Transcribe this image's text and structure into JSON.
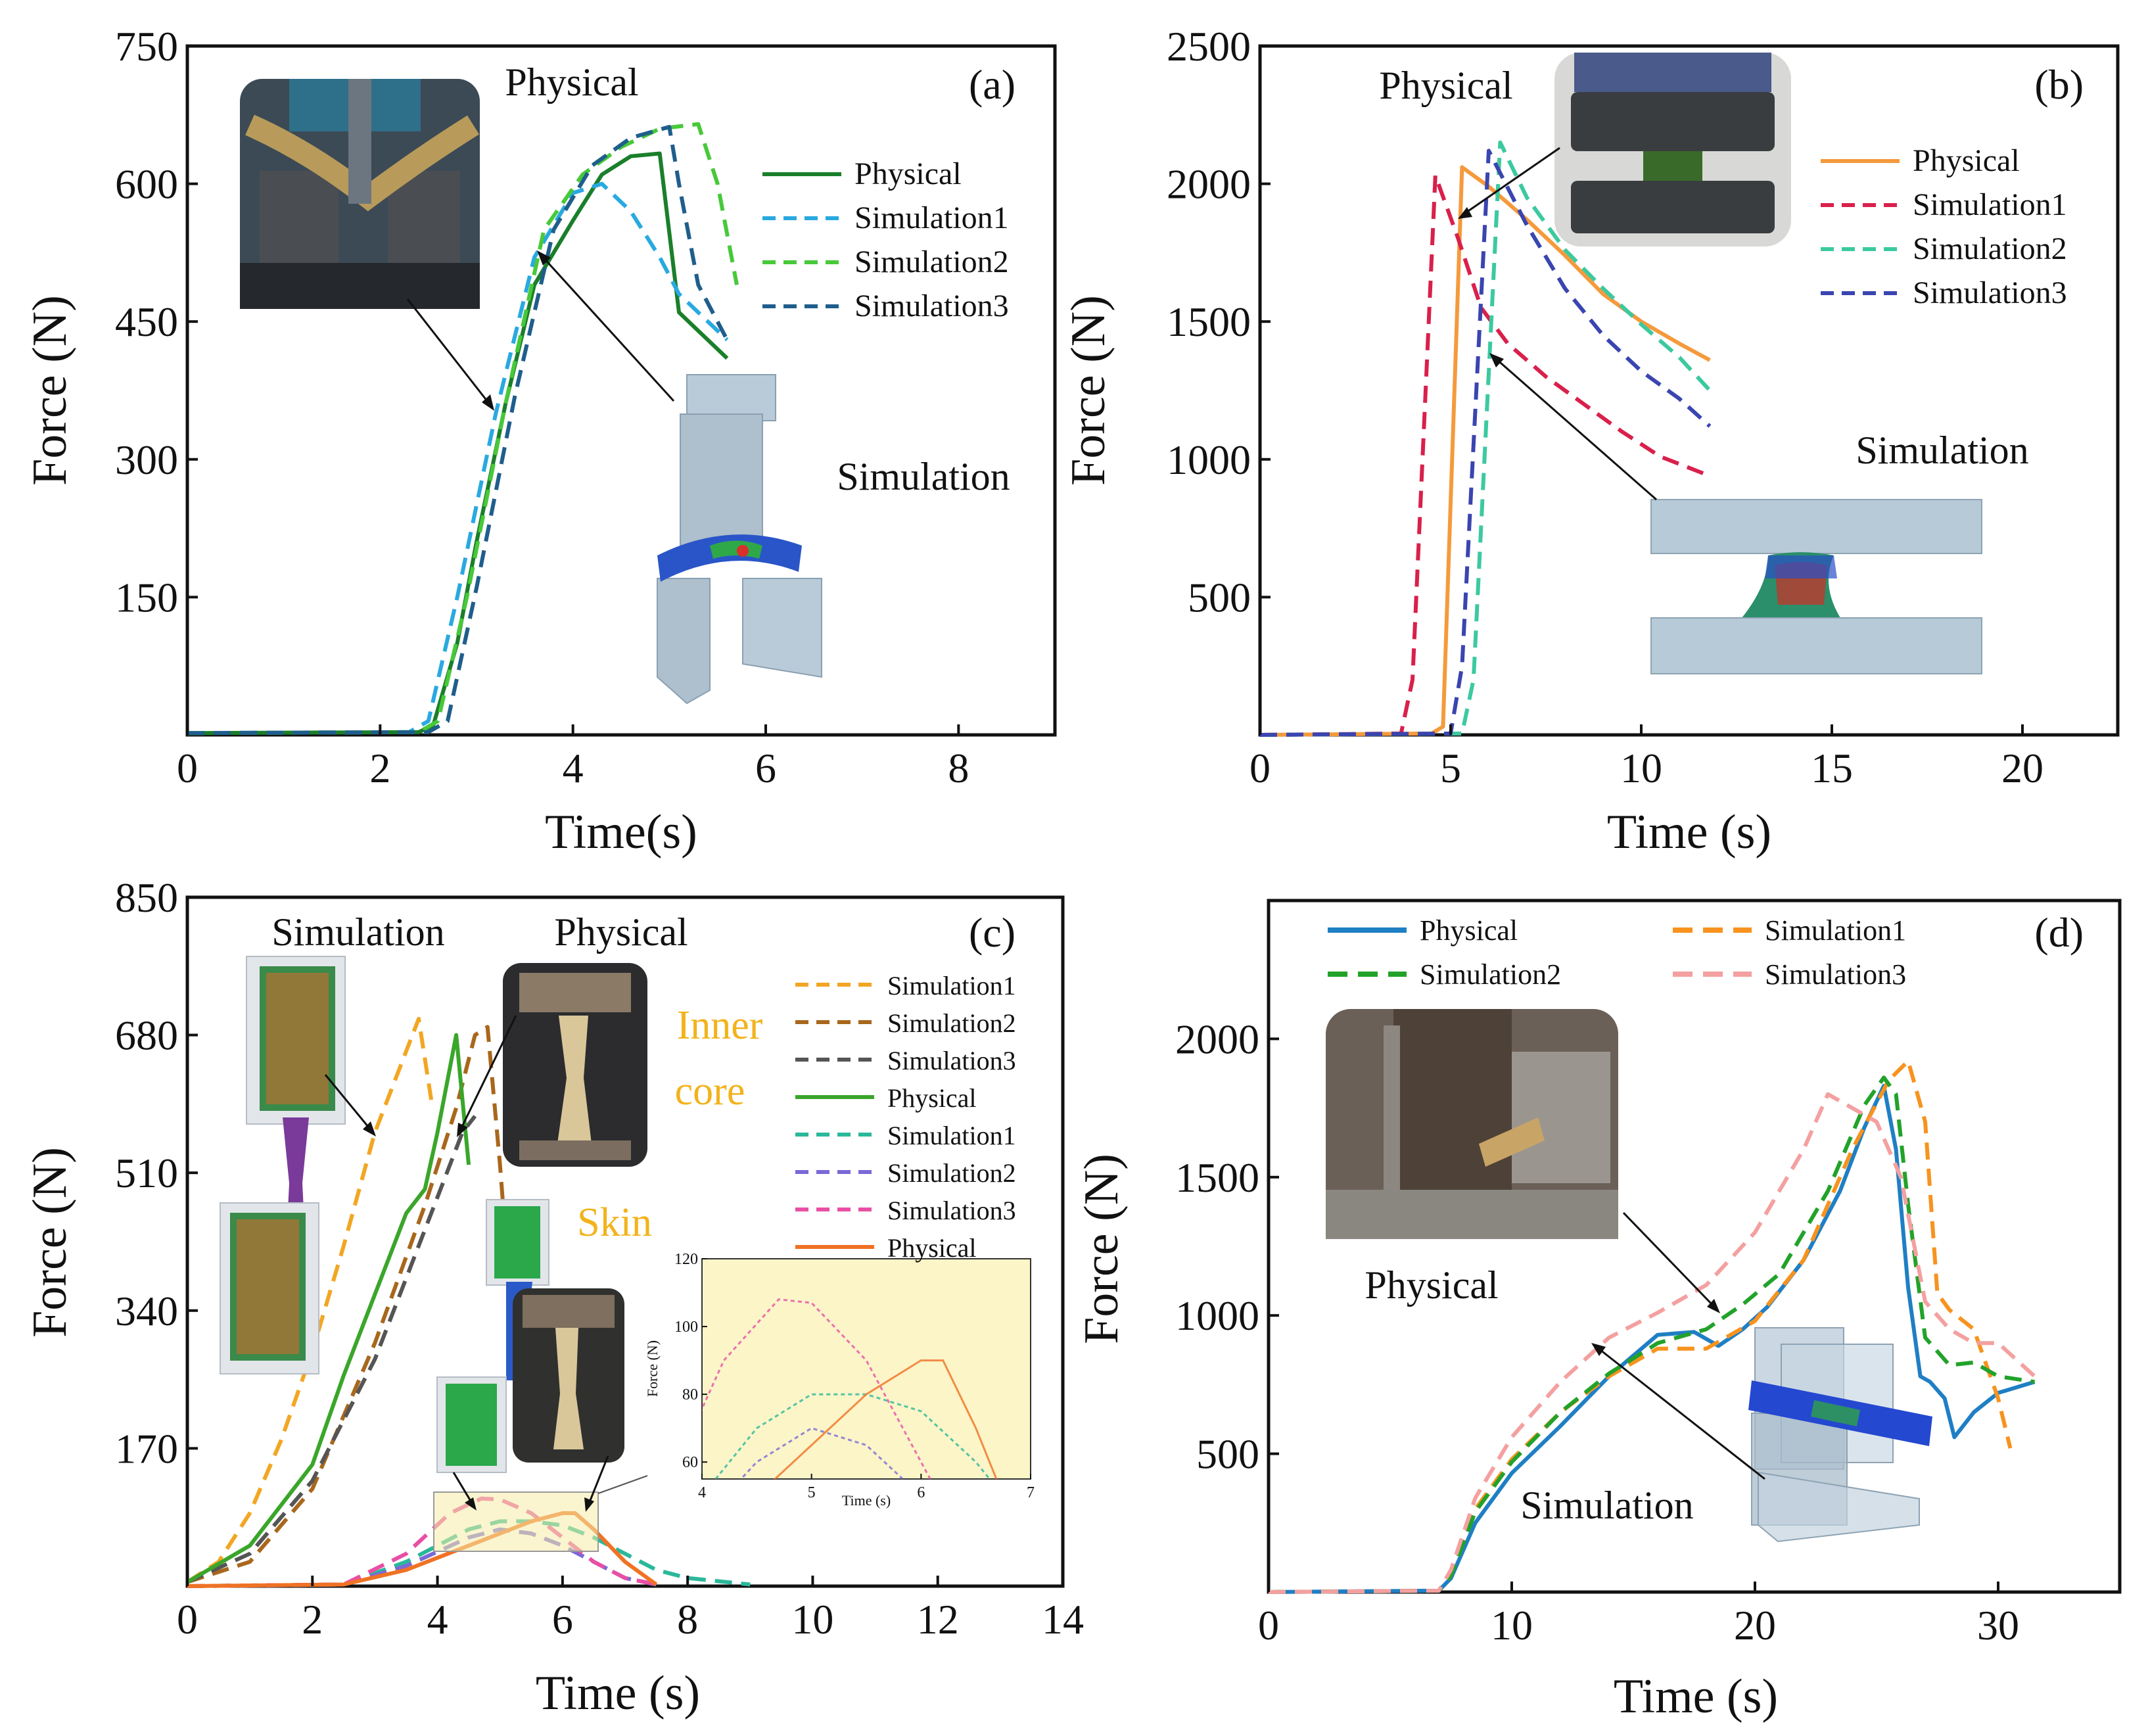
{
  "chart_data": [
    {
      "id": "a",
      "type": "line",
      "panel_label": "(a)",
      "xlabel": "Time(s)",
      "ylabel": "Force (N)",
      "xlim": [
        0,
        9
      ],
      "ylim": [
        0,
        750
      ],
      "xticks": [
        0,
        2,
        4,
        6,
        8
      ],
      "yticks": [
        150,
        300,
        450,
        600,
        750
      ],
      "annotations": [
        "Physical",
        "Simulation"
      ],
      "series": [
        {
          "name": "Physical",
          "color": "#1a7f2a",
          "dash": "solid",
          "x": [
            0,
            2.4,
            2.55,
            2.8,
            3.0,
            3.3,
            3.6,
            4.0,
            4.3,
            4.6,
            4.9,
            5.1,
            5.3,
            5.6
          ],
          "y": [
            2,
            3,
            10,
            100,
            210,
            360,
            490,
            560,
            610,
            630,
            633,
            460,
            440,
            410
          ]
        },
        {
          "name": "Simulation1",
          "color": "#29a9e0",
          "dash": "dashed",
          "x": [
            0,
            2.3,
            2.5,
            2.8,
            3.2,
            3.6,
            4.0,
            4.3,
            4.6,
            4.9,
            5.1,
            5.4,
            5.6
          ],
          "y": [
            2,
            3,
            15,
            150,
            350,
            520,
            590,
            600,
            570,
            520,
            480,
            450,
            430
          ]
        },
        {
          "name": "Simulation2",
          "color": "#47c93a",
          "dash": "dashed",
          "x": [
            0,
            2.4,
            2.6,
            2.9,
            3.3,
            3.7,
            4.1,
            4.5,
            4.9,
            5.3,
            5.5,
            5.7
          ],
          "y": [
            2,
            3,
            15,
            150,
            360,
            550,
            610,
            640,
            660,
            665,
            600,
            490
          ]
        },
        {
          "name": "Simulation3",
          "color": "#1f5e8c",
          "dash": "dashed",
          "x": [
            0,
            2.5,
            2.7,
            3.0,
            3.4,
            3.8,
            4.2,
            4.6,
            5.0,
            5.1,
            5.3,
            5.6
          ],
          "y": [
            2,
            3,
            15,
            160,
            370,
            550,
            620,
            650,
            662,
            600,
            490,
            430
          ]
        }
      ]
    },
    {
      "id": "b",
      "type": "line",
      "panel_label": "(b)",
      "xlabel": "Time (s)",
      "ylabel": "Force (N)",
      "xlim": [
        0,
        22.5
      ],
      "ylim": [
        0,
        2500
      ],
      "xticks": [
        0,
        5,
        10,
        15,
        20
      ],
      "yticks": [
        500,
        1000,
        1500,
        2000,
        2500
      ],
      "annotations": [
        "Physical",
        "Simulation"
      ],
      "series": [
        {
          "name": "Physical",
          "color": "#f59a3c",
          "dash": "solid",
          "x": [
            0,
            4.5,
            4.8,
            5.3,
            6.0,
            7.0,
            8.0,
            9.0,
            10.0,
            11.0,
            11.8
          ],
          "y": [
            0,
            5,
            30,
            2060,
            1990,
            1870,
            1740,
            1600,
            1500,
            1420,
            1360
          ]
        },
        {
          "name": "Simulation1",
          "color": "#d9204b",
          "dash": "dashed",
          "x": [
            0,
            3.7,
            4.0,
            4.6,
            5.2,
            5.8,
            6.5,
            7.5,
            8.5,
            9.5,
            10.5,
            11.8
          ],
          "y": [
            0,
            5,
            200,
            2030,
            1800,
            1550,
            1420,
            1300,
            1200,
            1100,
            1010,
            940
          ]
        },
        {
          "name": "Simulation2",
          "color": "#3cc9a0",
          "dash": "dashed",
          "x": [
            0,
            5.3,
            5.6,
            6.3,
            7.0,
            8.0,
            9.0,
            10.0,
            11.0,
            11.8
          ],
          "y": [
            0,
            5,
            200,
            2150,
            1950,
            1760,
            1620,
            1490,
            1370,
            1250
          ]
        },
        {
          "name": "Simulation3",
          "color": "#3a45b0",
          "dash": "dashed",
          "x": [
            0,
            5.0,
            5.3,
            6.0,
            7.0,
            8.0,
            9.0,
            10.0,
            11.0,
            11.8
          ],
          "y": [
            0,
            5,
            250,
            2120,
            1850,
            1620,
            1450,
            1320,
            1220,
            1120
          ]
        }
      ]
    },
    {
      "id": "c",
      "type": "line",
      "panel_label": "(c)",
      "xlabel": "Time (s)",
      "ylabel": "Force (N)",
      "xlim": [
        0,
        14
      ],
      "ylim": [
        0,
        850
      ],
      "xticks": [
        0,
        2,
        4,
        6,
        8,
        10,
        12,
        14
      ],
      "yticks": [
        170,
        340,
        510,
        680,
        850
      ],
      "annotations": [
        "Simulation",
        "Physical",
        "Inner",
        "core",
        "Skin"
      ],
      "series": [
        {
          "name": "Simulation1",
          "group": "Inner core",
          "color": "#f2a623",
          "dash": "dashed",
          "x": [
            0,
            0.5,
            1.0,
            1.5,
            2.0,
            2.5,
            3.0,
            3.4,
            3.7,
            3.9
          ],
          "y": [
            5,
            30,
            90,
            180,
            290,
            420,
            560,
            640,
            700,
            600
          ]
        },
        {
          "name": "Simulation2",
          "group": "Inner core",
          "color": "#a8671c",
          "dash": "dashed",
          "x": [
            0,
            1,
            2,
            3,
            3.8,
            4.3,
            4.6,
            4.8,
            5.0,
            5.1
          ],
          "y": [
            5,
            30,
            120,
            300,
            470,
            590,
            680,
            690,
            520,
            420
          ]
        },
        {
          "name": "Simulation3",
          "group": "Inner core",
          "color": "#555555",
          "dash": "dashed",
          "x": [
            0,
            1,
            2,
            3,
            3.5,
            4.0,
            4.4,
            4.6
          ],
          "y": [
            5,
            40,
            130,
            280,
            380,
            480,
            560,
            580
          ]
        },
        {
          "name": "Physical",
          "group": "Inner core",
          "color": "#3aa62a",
          "dash": "solid",
          "x": [
            0,
            1,
            2,
            2.5,
            3.0,
            3.5,
            3.8,
            4.0,
            4.3,
            4.5
          ],
          "y": [
            5,
            50,
            150,
            260,
            360,
            460,
            490,
            560,
            680,
            520
          ]
        },
        {
          "name": "Simulation1",
          "group": "Skin",
          "color": "#2ab89a",
          "dash": "dashed",
          "x": [
            0,
            2.5,
            3.5,
            4.5,
            5.0,
            5.5,
            6.0,
            6.5,
            7.0,
            7.5,
            8.0,
            9.0
          ],
          "y": [
            0,
            2,
            30,
            70,
            80,
            80,
            75,
            60,
            40,
            20,
            10,
            2
          ]
        },
        {
          "name": "Simulation2",
          "group": "Skin",
          "color": "#7a6ad6",
          "dash": "dashed",
          "x": [
            0,
            2.5,
            3.5,
            4.5,
            5.0,
            5.5,
            6.0,
            6.5,
            7.0,
            7.5
          ],
          "y": [
            0,
            2,
            25,
            60,
            70,
            65,
            50,
            30,
            10,
            2
          ]
        },
        {
          "name": "Simulation3",
          "group": "Skin",
          "color": "#e84fa5",
          "dash": "dashed",
          "x": [
            0,
            2.5,
            3.5,
            4.2,
            4.7,
            5.0,
            5.5,
            6.0,
            6.5,
            7.0,
            7.5
          ],
          "y": [
            0,
            2,
            40,
            90,
            108,
            107,
            90,
            60,
            30,
            10,
            2
          ]
        },
        {
          "name": "Physical",
          "group": "Skin",
          "color": "#f07224",
          "dash": "solid",
          "x": [
            0,
            2.5,
            3.5,
            4.5,
            5.0,
            5.5,
            6.0,
            6.2,
            6.5,
            7.0,
            7.5
          ],
          "y": [
            0,
            2,
            20,
            50,
            65,
            80,
            90,
            90,
            70,
            30,
            2
          ]
        }
      ],
      "inset": {
        "xlabel": "Time (s)",
        "ylabel": "Force (N)",
        "xlim": [
          4,
          7
        ],
        "ylim": [
          55,
          120
        ],
        "xticks": [
          4,
          5,
          6,
          7
        ],
        "yticks": [
          60,
          80,
          100,
          120
        ]
      }
    },
    {
      "id": "d",
      "type": "line",
      "panel_label": "(d)",
      "xlabel": "Time (s)",
      "ylabel": "Force (N)",
      "xlim": [
        0,
        35
      ],
      "ylim": [
        0,
        2500
      ],
      "xticks": [
        0,
        10,
        20,
        30
      ],
      "yticks": [
        500,
        1000,
        1500,
        2000
      ],
      "annotations": [
        "Physical",
        "Simulation"
      ],
      "series": [
        {
          "name": "Physical",
          "color": "#1f7fc4",
          "dash": "solid",
          "x": [
            0,
            7,
            7.5,
            8.5,
            10,
            12,
            14,
            16,
            17.5,
            18.5,
            19.5,
            20.5,
            22,
            23.5,
            24.5,
            25.3,
            25.8,
            26.3,
            26.8,
            27.2,
            27.8,
            28.2,
            29,
            30,
            31.5
          ],
          "y": [
            0,
            5,
            50,
            250,
            430,
            600,
            780,
            930,
            940,
            890,
            950,
            1030,
            1200,
            1450,
            1680,
            1830,
            1600,
            1100,
            780,
            760,
            700,
            560,
            650,
            720,
            760
          ]
        },
        {
          "name": "Simulation1",
          "color": "#f7931e",
          "dash": "dashed",
          "x": [
            0,
            7,
            7.5,
            8.5,
            10,
            12,
            14,
            16,
            18,
            19,
            20,
            22,
            24,
            25.5,
            26.3,
            27,
            27.5,
            28,
            29,
            30,
            30.5
          ],
          "y": [
            0,
            5,
            60,
            300,
            480,
            650,
            780,
            880,
            880,
            930,
            980,
            1200,
            1600,
            1850,
            1920,
            1700,
            1080,
            1020,
            950,
            700,
            520
          ]
        },
        {
          "name": "Simulation2",
          "color": "#22a22a",
          "dash": "dashed",
          "x": [
            0,
            7,
            7.5,
            8.5,
            10,
            12,
            14,
            16,
            18,
            19.5,
            21,
            23,
            24.5,
            25.3,
            25.8,
            26.3,
            27,
            28,
            29,
            30,
            31.5
          ],
          "y": [
            0,
            5,
            60,
            290,
            470,
            650,
            790,
            900,
            950,
            1040,
            1150,
            1450,
            1760,
            1860,
            1800,
            1400,
            920,
            820,
            830,
            780,
            760
          ]
        },
        {
          "name": "Simulation3",
          "color": "#f4a0a0",
          "dash": "dashed",
          "x": [
            0,
            7,
            7.5,
            8.5,
            10,
            12,
            14,
            16,
            18,
            20,
            22,
            23,
            24,
            25,
            26,
            27,
            28,
            29,
            30,
            31.5
          ],
          "y": [
            0,
            5,
            80,
            340,
            560,
            760,
            920,
            1010,
            1110,
            1300,
            1600,
            1800,
            1750,
            1700,
            1500,
            1050,
            950,
            900,
            900,
            780
          ]
        }
      ]
    }
  ]
}
